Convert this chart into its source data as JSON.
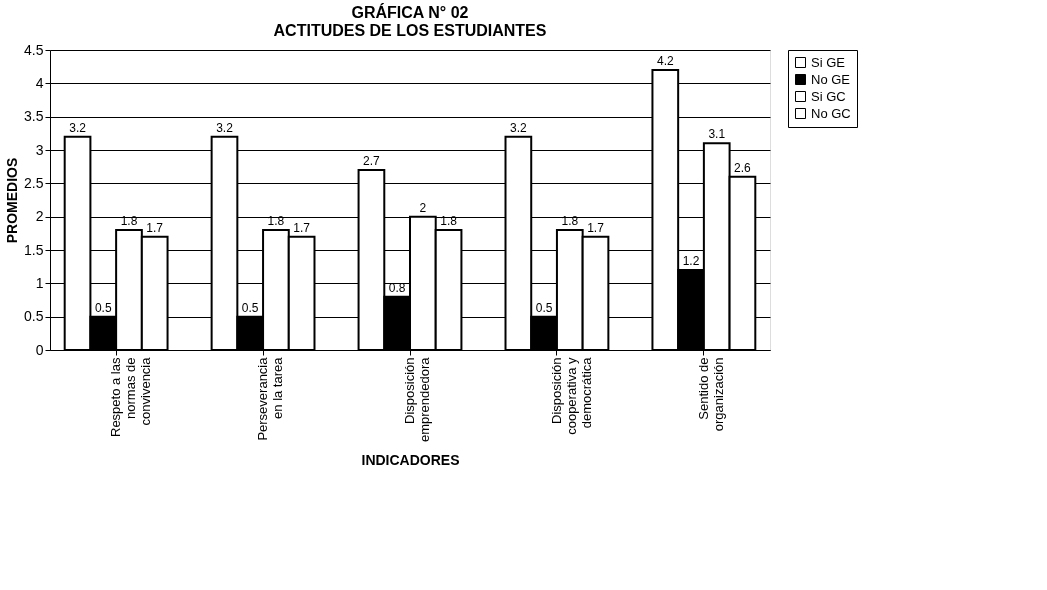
{
  "chart_data": {
    "type": "bar",
    "title": [
      "GRÁFICA N° 02",
      "ACTITUDES DE LOS ESTUDIANTES"
    ],
    "xlabel": "INDICADORES",
    "ylabel": "PROMEDIOS",
    "categories": [
      "Respeto a las\nnormas de\nconvivencia",
      "Perseverancia\nen la tarea",
      "Disposición\nemprendedora",
      "Disposición\ncooperativa y\ndemocrática",
      "Sentido de\norganización"
    ],
    "series": [
      {
        "name": "Si GE",
        "color": "#ffffff",
        "values": [
          3.2,
          3.2,
          2.7,
          3.2,
          4.2
        ]
      },
      {
        "name": "No GE",
        "color": "#000000",
        "values": [
          0.5,
          0.5,
          0.8,
          0.5,
          1.2
        ]
      },
      {
        "name": "Si GC",
        "color": "#ffffff",
        "values": [
          1.8,
          1.8,
          2,
          1.8,
          3.1
        ]
      },
      {
        "name": "No GC",
        "color": "#ffffff",
        "values": [
          1.7,
          1.7,
          1.8,
          1.7,
          2.6
        ]
      }
    ],
    "ylim": [
      0,
      4.5
    ],
    "yticks": [
      0,
      0.5,
      1,
      1.5,
      2,
      2.5,
      3,
      3.5,
      4,
      4.5
    ],
    "grid": "y",
    "legend": "right",
    "data_labels": true
  }
}
